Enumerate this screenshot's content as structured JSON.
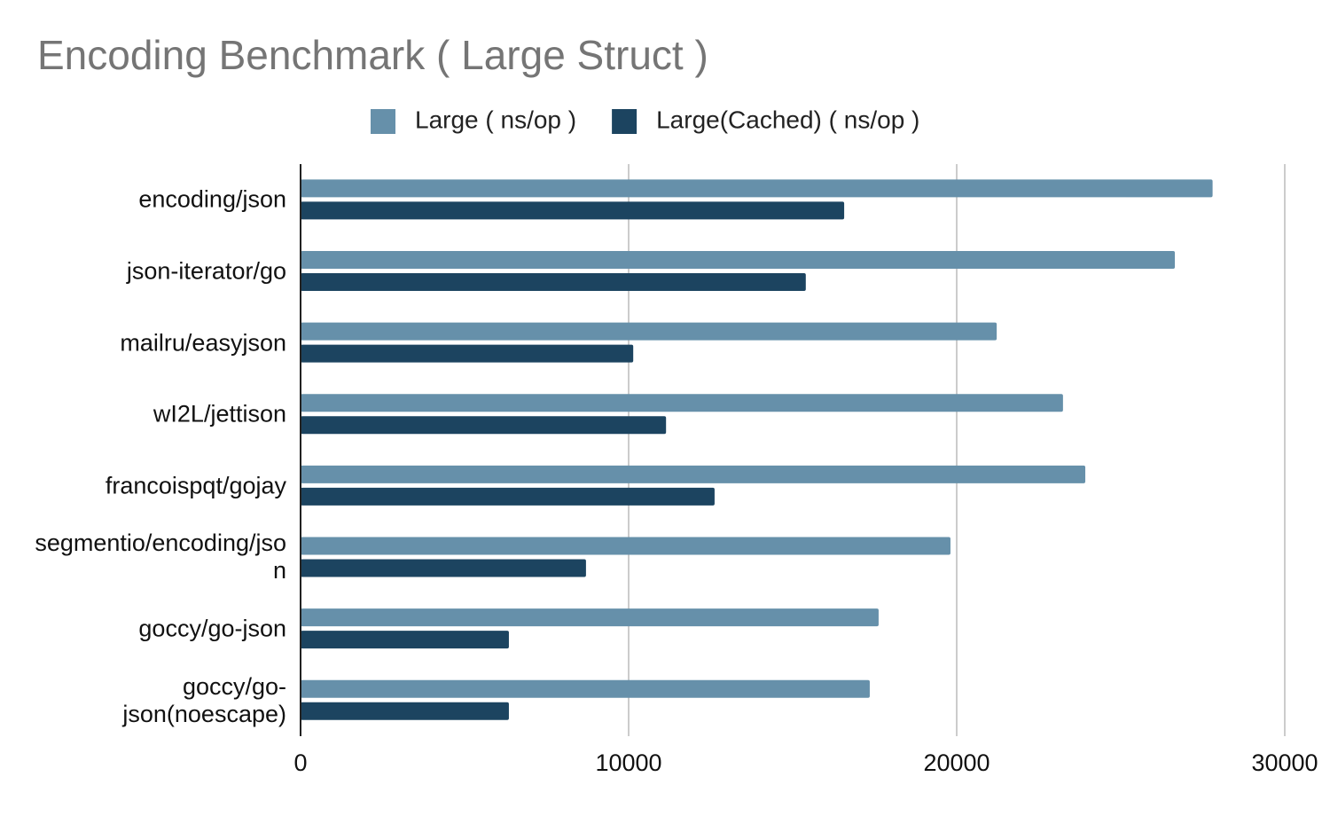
{
  "chart_data": {
    "type": "bar",
    "orientation": "horizontal",
    "title": "Encoding Benchmark ( Large Struct )",
    "categories": [
      "encoding/json",
      "json-iterator/go",
      "mailru/easyjson",
      "wI2L/jettison",
      "francoispqt/gojay",
      "segmentio/encoding/json",
      "goccy/go-json",
      "goccy/go-json(noescape)"
    ],
    "series": [
      {
        "name": "Large ( ns/op )",
        "color": "#6690aa",
        "values": [
          27800,
          26650,
          21220,
          23240,
          23920,
          19810,
          17620,
          17350
        ]
      },
      {
        "name": "Large(Cached) ( ns/op )",
        "color": "#1c4460",
        "values": [
          16570,
          15400,
          10140,
          11140,
          12620,
          8700,
          6350,
          6350
        ]
      }
    ],
    "xlim": [
      0,
      30000
    ],
    "xticks": [
      0,
      10000,
      20000,
      30000
    ],
    "grid": true,
    "legend": "top"
  }
}
